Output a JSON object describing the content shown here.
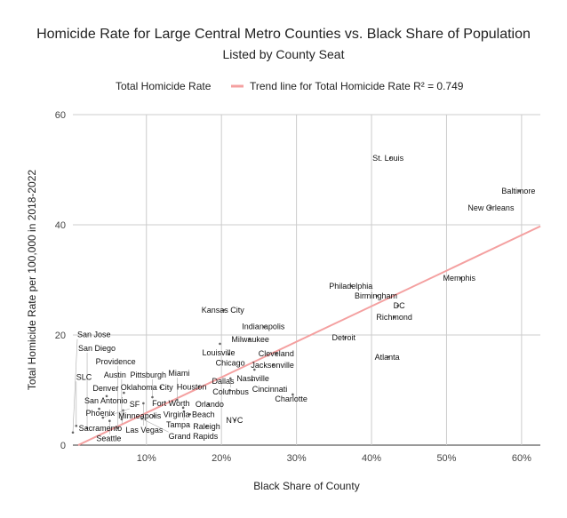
{
  "chart_data": {
    "type": "scatter",
    "title": "Homicide Rate for Large Central Metro Counties vs. Black Share of Population",
    "subtitle": "Listed by County Seat",
    "xlabel": "Black Share of County",
    "ylabel": "Total Homicide Rate per 100,000 in 2018-2022",
    "xlim": [
      0.2,
      62.5
    ],
    "ylim": [
      0,
      60
    ],
    "x_ticks": [
      {
        "v": 10,
        "label": "10%"
      },
      {
        "v": 20,
        "label": "20%"
      },
      {
        "v": 30,
        "label": "30%"
      },
      {
        "v": 40,
        "label": "40%"
      },
      {
        "v": 50,
        "label": "50%"
      },
      {
        "v": 60,
        "label": "60%"
      }
    ],
    "y_ticks": [
      {
        "v": 0,
        "label": "0"
      },
      {
        "v": 20,
        "label": "20"
      },
      {
        "v": 40,
        "label": "40"
      },
      {
        "v": 60,
        "label": "60"
      }
    ],
    "grid": true,
    "legend_position": "top",
    "legend": [
      "Total Homicide Rate",
      "Trend line for Total Homicide Rate R² = 0.749"
    ],
    "trend_color": "#f4a0a0",
    "trendline": {
      "slope": 0.645,
      "intercept": -0.58
    },
    "points": [
      {
        "label": "St. Louis",
        "x": 42.5,
        "y": 52.1
      },
      {
        "label": "Baltimore",
        "x": 59.7,
        "y": 46.1
      },
      {
        "label": "New Orleans",
        "x": 55.8,
        "y": 43.1
      },
      {
        "label": "Memphis",
        "x": 51.9,
        "y": 30.3
      },
      {
        "label": "Philadelphia",
        "x": 37.3,
        "y": 28.9
      },
      {
        "label": "Birmingham",
        "x": 40.7,
        "y": 27.1
      },
      {
        "label": "DC",
        "x": 43.5,
        "y": 25.3
      },
      {
        "label": "Richmond",
        "x": 43.0,
        "y": 23.2
      },
      {
        "label": "Detroit",
        "x": 36.5,
        "y": 19.5
      },
      {
        "label": "Atlanta",
        "x": 42.2,
        "y": 16.0
      },
      {
        "label": "Kansas City",
        "x": 20.3,
        "y": 24.5
      },
      {
        "label": "Indianapolis",
        "x": 25.7,
        "y": 21.5
      },
      {
        "label": "Milwaukee",
        "x": 23.7,
        "y": 19.2
      },
      {
        "label": "Louisville",
        "x": 19.8,
        "y": 18.4
      },
      {
        "label": "Chicago",
        "x": 21.0,
        "y": 16.5
      },
      {
        "label": "Cleveland",
        "x": 27.3,
        "y": 16.6
      },
      {
        "label": "Jacksonville",
        "x": 26.9,
        "y": 14.5
      },
      {
        "label": "Nashville",
        "x": 24.4,
        "y": 13.7
      },
      {
        "label": "Columbus",
        "x": 21.2,
        "y": 12.1
      },
      {
        "label": "Cincinnati",
        "x": 24.1,
        "y": 11.8
      },
      {
        "label": "Houston",
        "x": 17.0,
        "y": 10.6
      },
      {
        "label": "Dallas",
        "x": 21.1,
        "y": 10.0
      },
      {
        "label": "Charlotte",
        "x": 29.5,
        "y": 9.2
      },
      {
        "label": "Oklahoma City",
        "x": 11.9,
        "y": 10.5
      },
      {
        "label": "Orlando",
        "x": 18.3,
        "y": 7.4
      },
      {
        "label": "NYC",
        "x": 21.8,
        "y": 4.5
      },
      {
        "label": "Raleigh",
        "x": 18.0,
        "y": 3.4
      },
      {
        "label": "Virginia Beach",
        "x": 15.8,
        "y": 5.6
      },
      {
        "label": "Fort Worth",
        "x": 14.9,
        "y": 6.8
      },
      {
        "label": "Miami",
        "x": 14.1,
        "y": 8.2
      },
      {
        "label": "Tampa",
        "x": 15.0,
        "y": 6.1
      },
      {
        "label": "Minneapolis",
        "x": 11.0,
        "y": 5.3
      },
      {
        "label": "San Antonio",
        "x": 4.7,
        "y": 8.9
      },
      {
        "label": "Denver",
        "x": 7.0,
        "y": 9.5
      },
      {
        "label": "Pittsburgh",
        "x": 10.8,
        "y": 8.7
      },
      {
        "label": "Las Vegas",
        "x": 9.6,
        "y": 7.6
      },
      {
        "label": "Phoenix",
        "x": 3.7,
        "y": 6.6
      },
      {
        "label": "Sacramento",
        "x": 6.9,
        "y": 6.3
      },
      {
        "label": "Austin",
        "x": 6.7,
        "y": 4.7
      },
      {
        "label": "SF",
        "x": 4.2,
        "y": 5.0
      },
      {
        "label": "Seattle",
        "x": 5.1,
        "y": 4.4
      },
      {
        "label": "Grand Rapids",
        "x": 9.4,
        "y": 4.8
      },
      {
        "label": "Providence",
        "x": 6.2,
        "y": 3.1
      },
      {
        "label": "San Diego",
        "x": 2.1,
        "y": 3.1
      },
      {
        "label": "SLC",
        "x": 0.65,
        "y": 3.5
      },
      {
        "label": "San Jose",
        "x": 0.2,
        "y": 2.3
      }
    ]
  }
}
